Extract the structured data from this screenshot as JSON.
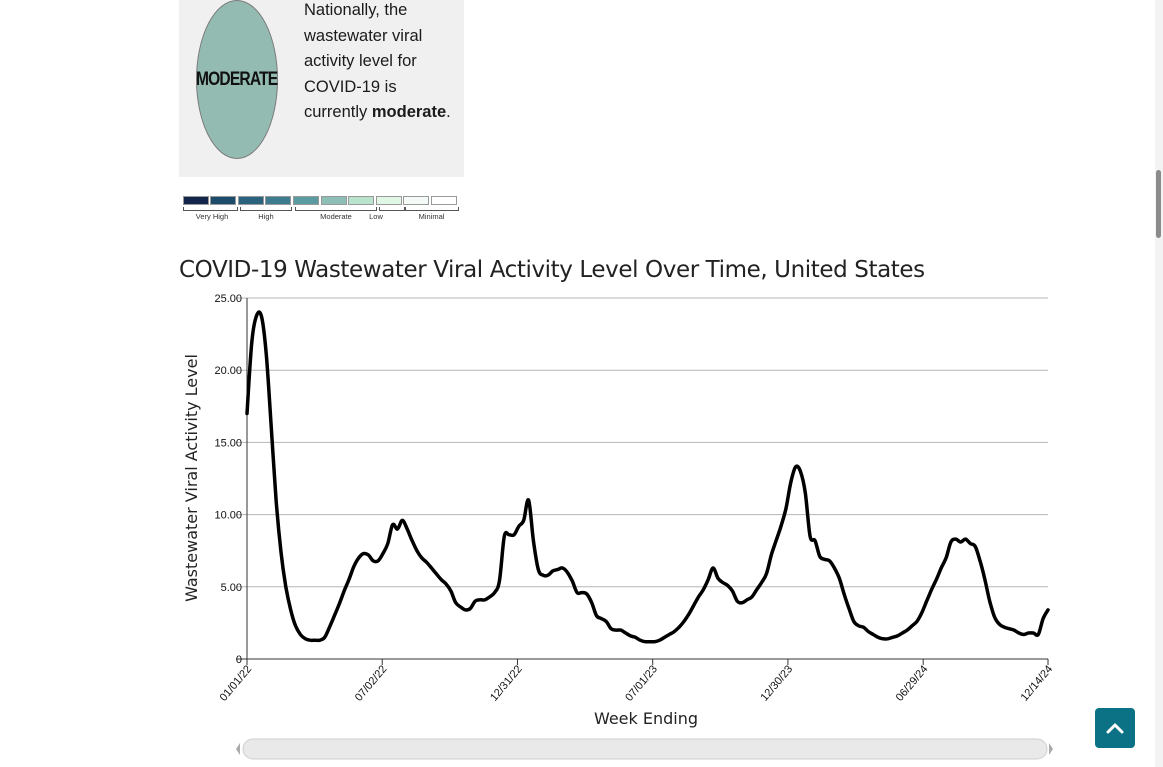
{
  "status": {
    "level_badge": "MODERATE",
    "text_prefix": "Nationally, the wastewater viral activity level for COVID-19 is currently",
    "text_level": "moderate",
    "text_suffix": "."
  },
  "legend": {
    "swatch_colors": [
      "#14254a",
      "#1d4c6b",
      "#2b637e",
      "#3d7c8f",
      "#5a9aa1",
      "#8dbfb6",
      "#b9e3cd",
      "#e1f7e6",
      "#f4fbf6",
      "#ffffff"
    ],
    "labels": [
      "Very High",
      "High",
      "Moderate",
      "Low",
      "Minimal"
    ]
  },
  "chart_title": "COVID-19 Wastewater Viral Activity Level Over Time, United States",
  "chart_data": {
    "type": "line",
    "title": "COVID-19 Wastewater Viral Activity Level Over Time, United States",
    "xlabel": "Week Ending",
    "ylabel": "Wastewater Viral Activity Level",
    "ylim": [
      0,
      25
    ],
    "yticks": [
      "0",
      "5.00",
      "10.00",
      "15.00",
      "20.00",
      "25.00"
    ],
    "xticks": [
      "01/01/22",
      "07/02/22",
      "12/31/22",
      "07/01/23",
      "12/30/23",
      "06/29/24",
      "12/14/24"
    ],
    "x_start": "2022-01-01",
    "x_end": "2024-12-14",
    "grid": "horizontal",
    "line_color": "#000000",
    "values": [
      17.0,
      22.0,
      23.8,
      23.7,
      21.0,
      16.0,
      11.0,
      7.4,
      5.0,
      3.4,
      2.3,
      1.7,
      1.4,
      1.3,
      1.3,
      1.3,
      1.5,
      2.2,
      3.0,
      3.8,
      4.7,
      5.5,
      6.4,
      7.0,
      7.3,
      7.2,
      6.8,
      6.8,
      7.3,
      8.0,
      9.3,
      9.0,
      9.6,
      9.0,
      8.2,
      7.5,
      7.0,
      6.7,
      6.3,
      5.9,
      5.5,
      5.2,
      4.7,
      3.9,
      3.6,
      3.4,
      3.5,
      4.0,
      4.1,
      4.1,
      4.3,
      4.6,
      5.4,
      8.5,
      8.6,
      8.6,
      9.2,
      9.6,
      11.0,
      8.2,
      6.2,
      5.8,
      5.8,
      6.1,
      6.2,
      6.3,
      6.0,
      5.4,
      4.6,
      4.6,
      4.5,
      3.9,
      3.0,
      2.8,
      2.6,
      2.1,
      2.0,
      2.0,
      1.8,
      1.6,
      1.5,
      1.3,
      1.2,
      1.2,
      1.2,
      1.3,
      1.5,
      1.7,
      1.9,
      2.2,
      2.6,
      3.1,
      3.7,
      4.3,
      4.8,
      5.5,
      6.3,
      5.6,
      5.3,
      5.1,
      4.7,
      4.0,
      3.9,
      4.1,
      4.3,
      4.8,
      5.3,
      5.9,
      7.2,
      8.2,
      9.2,
      10.4,
      12.2,
      13.3,
      13.0,
      11.5,
      8.5,
      8.2,
      7.1,
      6.9,
      6.8,
      6.3,
      5.6,
      4.5,
      3.5,
      2.6,
      2.3,
      2.2,
      1.9,
      1.7,
      1.5,
      1.4,
      1.4,
      1.5,
      1.6,
      1.8,
      2.0,
      2.3,
      2.6,
      3.2,
      4.0,
      4.8,
      5.5,
      6.3,
      7.0,
      8.1,
      8.3,
      8.1,
      8.3,
      8.0,
      7.8,
      6.8,
      5.5,
      4.0,
      2.9,
      2.4,
      2.2,
      2.1,
      2.0,
      1.8,
      1.7,
      1.8,
      1.8,
      1.7,
      2.8,
      3.4
    ]
  },
  "icons": {
    "back_to_top": "chevron-up-icon"
  }
}
